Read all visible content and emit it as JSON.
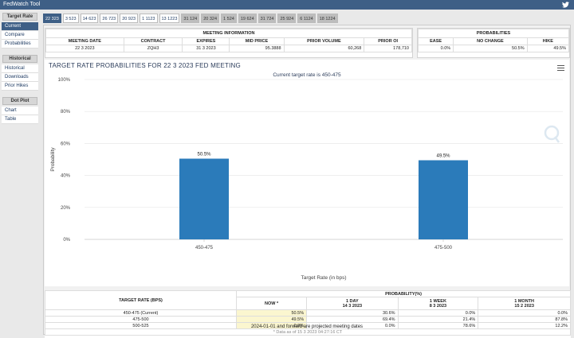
{
  "app": {
    "title": "FedWatch Tool"
  },
  "sidebar": {
    "sections": [
      {
        "header": "Target Rate",
        "items": [
          {
            "label": "Current",
            "active": true
          },
          {
            "label": "Compare"
          },
          {
            "label": "Probabilities"
          }
        ]
      },
      {
        "header": "Historical",
        "items": [
          {
            "label": "Historical"
          },
          {
            "label": "Downloads"
          },
          {
            "label": "Prior Hikes"
          }
        ]
      },
      {
        "header": "Dot Plot",
        "items": [
          {
            "label": "Chart"
          },
          {
            "label": "Table"
          }
        ]
      }
    ]
  },
  "meeting_tabs": [
    "22 323",
    "3 523",
    "14 623",
    "26 723",
    "20 923",
    "1 1123",
    "13 1223",
    "31 124",
    "20 324",
    "1 524",
    "19 624",
    "31 724",
    "25 924",
    "6 1124",
    "18 1224"
  ],
  "meeting_info": {
    "title": "MEETING INFORMATION",
    "headers": [
      "MEETING DATE",
      "CONTRACT",
      "EXPIRES",
      "MID PRICE",
      "PRIOR VOLUME",
      "PRIOR OI"
    ],
    "row": [
      "22 3 2023",
      "ZQH3",
      "31 3 2023",
      "95.3888",
      "60,268",
      "178,710"
    ]
  },
  "probabilities": {
    "title": "PROBABILITIES",
    "headers": [
      "EASE",
      "NO CHANGE",
      "HIKE"
    ],
    "row": [
      "0.0%",
      "50.5%",
      "49.5%"
    ]
  },
  "chart": {
    "title": "TARGET RATE PROBABILITIES FOR 22 3 2023 FED MEETING",
    "subtitle": "Current target rate is 450-475"
  },
  "chart_data": {
    "type": "bar",
    "categories": [
      "450-475",
      "475-500"
    ],
    "values": [
      50.5,
      49.5
    ],
    "value_labels": [
      "50.5%",
      "49.5%"
    ],
    "xlabel": "Target Rate (in bps)",
    "ylabel": "Probability",
    "ylim": [
      0,
      100
    ],
    "yticks": [
      "0%",
      "20%",
      "40%",
      "60%",
      "80%",
      "100%"
    ],
    "color": "#2b7bba"
  },
  "prob_table": {
    "col_target": "TARGET RATE (BPS)",
    "col_group": "PROBABILITY(%)",
    "cols": [
      {
        "label": "NOW *",
        "date": ""
      },
      {
        "label": "1 DAY",
        "date": "14 3 2023"
      },
      {
        "label": "1 WEEK",
        "date": "8 3 2023"
      },
      {
        "label": "1 MONTH",
        "date": "15 2 2023"
      }
    ],
    "rows": [
      {
        "rate": "450-475 (Current)",
        "vals": [
          "50.5%",
          "30.6%",
          "0.0%",
          "0.0%"
        ]
      },
      {
        "rate": "475-500",
        "vals": [
          "49.5%",
          "69.4%",
          "21.4%",
          "87.8%"
        ]
      },
      {
        "rate": "500-525",
        "vals": [
          "0.0%",
          "0.0%",
          "78.6%",
          "12.2%"
        ]
      }
    ],
    "footnote": "* Data as of 15 3 2023 04:27:16 CT"
  },
  "footer": "2024-01-01 and forward are projected meeting dates"
}
